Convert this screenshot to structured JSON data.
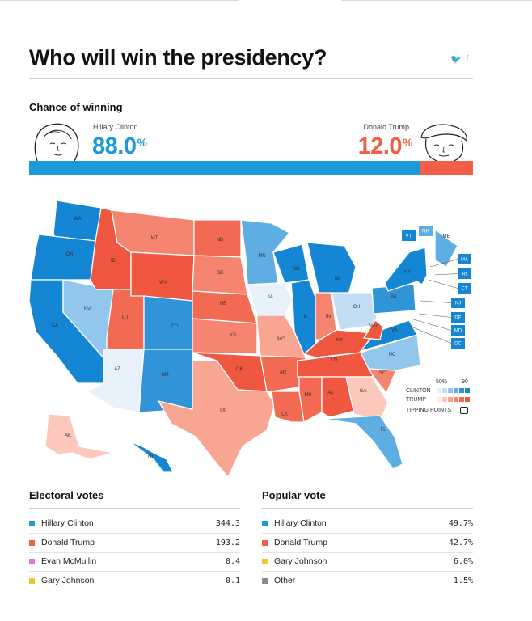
{
  "header": {
    "title": "Who will win the presidency?",
    "share_icons": [
      "twitter-icon",
      "facebook-icon"
    ],
    "twitter_glyph": "🐦",
    "facebook_glyph": "f"
  },
  "chance": {
    "heading": "Chance of winning",
    "clinton": {
      "name": "Hillary Clinton",
      "pct": "88.0",
      "unit": "%",
      "color": "#1d9ad6",
      "value": 88.0
    },
    "trump": {
      "name": "Donald Trump",
      "pct": "12.0",
      "unit": "%",
      "color": "#f25f46",
      "value": 12.0
    }
  },
  "map": {
    "legend": {
      "tick_50": "50%",
      "tick_90": "90",
      "clinton_label": "CLINTON",
      "trump_label": "TRUMP",
      "tipping_label": "TIPPING POINTS",
      "clinton_scale": [
        "#e6f1fb",
        "#c3ddf4",
        "#93c6ec",
        "#5faee3",
        "#2f95d8",
        "#1486d4"
      ],
      "trump_scale": [
        "#fde7e1",
        "#fbc8bb",
        "#f8a592",
        "#f58570",
        "#f26a51",
        "#ef5740"
      ]
    },
    "states": [
      {
        "code": "WA",
        "color": "#1486d4"
      },
      {
        "code": "OR",
        "color": "#1486d4"
      },
      {
        "code": "CA",
        "color": "#1486d4"
      },
      {
        "code": "NV",
        "color": "#93c6ec"
      },
      {
        "code": "ID",
        "color": "#ef5740"
      },
      {
        "code": "MT",
        "color": "#f58570"
      },
      {
        "code": "WY",
        "color": "#ef5740"
      },
      {
        "code": "UT",
        "color": "#f26a51"
      },
      {
        "code": "AZ",
        "color": "#e6f1fb"
      },
      {
        "code": "CO",
        "color": "#2f95d8"
      },
      {
        "code": "NM",
        "color": "#2f95d8"
      },
      {
        "code": "ND",
        "color": "#f26a51"
      },
      {
        "code": "SD",
        "color": "#f58570"
      },
      {
        "code": "NE",
        "color": "#f26a51"
      },
      {
        "code": "KS",
        "color": "#f58570"
      },
      {
        "code": "OK",
        "color": "#ef5740"
      },
      {
        "code": "TX",
        "color": "#f8a592"
      },
      {
        "code": "MN",
        "color": "#5faee3"
      },
      {
        "code": "IA",
        "color": "#e6f1fb"
      },
      {
        "code": "MO",
        "color": "#f8a592"
      },
      {
        "code": "AR",
        "color": "#f26a51"
      },
      {
        "code": "LA",
        "color": "#f26a51"
      },
      {
        "code": "WI",
        "color": "#1486d4"
      },
      {
        "code": "IL",
        "color": "#1486d4"
      },
      {
        "code": "MI",
        "color": "#1486d4"
      },
      {
        "code": "IN",
        "color": "#f58570"
      },
      {
        "code": "OH",
        "color": "#c3ddf4"
      },
      {
        "code": "KY",
        "color": "#ef5740"
      },
      {
        "code": "TN",
        "color": "#ef5740"
      },
      {
        "code": "MS",
        "color": "#f26a51"
      },
      {
        "code": "AL",
        "color": "#ef5740"
      },
      {
        "code": "GA",
        "color": "#fbc8bb"
      },
      {
        "code": "FL",
        "color": "#5faee3"
      },
      {
        "code": "SC",
        "color": "#f58570"
      },
      {
        "code": "NC",
        "color": "#93c6ec"
      },
      {
        "code": "VA",
        "color": "#1486d4"
      },
      {
        "code": "WV",
        "color": "#ef5740"
      },
      {
        "code": "PA",
        "color": "#2f95d8"
      },
      {
        "code": "NY",
        "color": "#1486d4"
      },
      {
        "code": "ME",
        "color": "#5faee3"
      },
      {
        "code": "AK",
        "color": "#fbc8bb"
      },
      {
        "code": "HI",
        "color": "#1486d4"
      },
      {
        "code": "VT",
        "color": "#1486d4"
      },
      {
        "code": "NH",
        "color": "#5faee3"
      },
      {
        "code": "MA",
        "color": "#1486d4"
      },
      {
        "code": "RI",
        "color": "#1486d4"
      },
      {
        "code": "CT",
        "color": "#1486d4"
      },
      {
        "code": "NJ",
        "color": "#1486d4"
      },
      {
        "code": "DE",
        "color": "#1486d4"
      },
      {
        "code": "MD",
        "color": "#1486d4"
      },
      {
        "code": "DC",
        "color": "#1486d4"
      }
    ]
  },
  "electoral": {
    "heading": "Electoral votes",
    "rows": [
      {
        "name": "Hillary Clinton",
        "value": "344.3",
        "color": "#1d9ad6"
      },
      {
        "name": "Donald Trump",
        "value": "193.2",
        "color": "#f25f46"
      },
      {
        "name": "Evan McMullin",
        "value": "0.4",
        "color": "#d47fd0"
      },
      {
        "name": "Gary Johnson",
        "value": "0.1",
        "color": "#f4c430"
      }
    ]
  },
  "popular": {
    "heading": "Popular vote",
    "rows": [
      {
        "name": "Hillary Clinton",
        "value": "49.7%",
        "color": "#1d9ad6"
      },
      {
        "name": "Donald Trump",
        "value": "42.7%",
        "color": "#f25f46"
      },
      {
        "name": "Gary Johnson",
        "value": "6.0%",
        "color": "#f4c430"
      },
      {
        "name": "Other",
        "value": "1.5%",
        "color": "#8a8a8a"
      }
    ]
  },
  "chart_data": [
    {
      "type": "bar",
      "title": "Chance of winning",
      "categories": [
        "Hillary Clinton",
        "Donald Trump"
      ],
      "values": [
        88.0,
        12.0
      ],
      "unit": "%"
    },
    {
      "type": "table",
      "title": "Electoral votes",
      "categories": [
        "Hillary Clinton",
        "Donald Trump",
        "Evan McMullin",
        "Gary Johnson"
      ],
      "values": [
        344.3,
        193.2,
        0.4,
        0.1
      ]
    },
    {
      "type": "table",
      "title": "Popular vote",
      "categories": [
        "Hillary Clinton",
        "Donald Trump",
        "Gary Johnson",
        "Other"
      ],
      "values": [
        49.7,
        42.7,
        6.0,
        1.5
      ],
      "unit": "%"
    }
  ]
}
